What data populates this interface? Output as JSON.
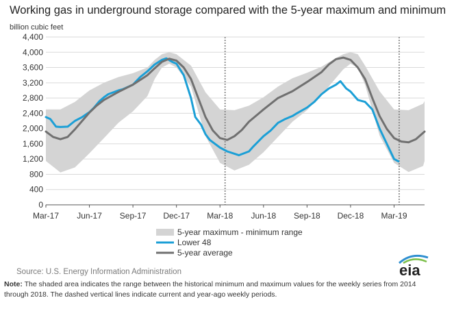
{
  "header": {
    "title": "Working gas in underground  storage compared with the 5-year maximum and minimum",
    "unit": "billion cubic feet"
  },
  "footer": {
    "source": "Source:  U.S. Energy Information Administration",
    "note_label": "Note:",
    "note_text": " The shaded area indicates the range between the historical minimum and maximum values for the weekly series from 2014 through 2018. The dashed vertical lines indicate current and year-ago weekly periods.",
    "logo_text": "eia"
  },
  "colors": {
    "range": "#d4d4d4",
    "lower48": "#1b9fd6",
    "avg": "#707070",
    "grid": "#d9d9d9",
    "logo_blue": "#2f8fd0",
    "logo_green": "#7cbf4a"
  },
  "chart_data": {
    "type": "area",
    "xlabel": "",
    "ylabel": "billion cubic feet",
    "x_unit": "month index (0 = Mar-17)",
    "xlim": [
      0,
      26.1
    ],
    "ylim": [
      0,
      4400
    ],
    "y_ticks": [
      0,
      400,
      800,
      1200,
      1600,
      2000,
      2400,
      2800,
      3200,
      3600,
      4000,
      4400
    ],
    "x_ticks": [
      {
        "label": "Mar-17",
        "x": 0
      },
      {
        "label": "Jun-17",
        "x": 3
      },
      {
        "label": "Sep-17",
        "x": 6
      },
      {
        "label": "Dec-17",
        "x": 9
      },
      {
        "label": "Mar-18",
        "x": 12
      },
      {
        "label": "Jun-18",
        "x": 15
      },
      {
        "label": "Sep-18",
        "x": 18
      },
      {
        "label": "Dec-18",
        "x": 21
      },
      {
        "label": "Mar-19",
        "x": 24
      }
    ],
    "grid": true,
    "legend": "bottom-center",
    "dashed_lines_x": [
      12.35,
      24.35
    ],
    "series": [
      {
        "name": "5-year maximum - minimum range",
        "kind": "band",
        "x": [
          0,
          1,
          2,
          3,
          4,
          5,
          6,
          7,
          7.5,
          8,
          8.5,
          9,
          10,
          11,
          12,
          13,
          14,
          15,
          16,
          17,
          18,
          19,
          20,
          20.5,
          21,
          21.5,
          22,
          23,
          24,
          25,
          26,
          26.1
        ],
        "upper": [
          2500,
          2500,
          2700,
          3000,
          3200,
          3350,
          3450,
          3600,
          3800,
          3950,
          4000,
          3950,
          3650,
          2950,
          2500,
          2480,
          2600,
          2820,
          3100,
          3320,
          3460,
          3620,
          3850,
          3950,
          4000,
          3950,
          3650,
          2980,
          2500,
          2480,
          2650,
          2720
        ],
        "lower": [
          1150,
          850,
          980,
          1350,
          1750,
          2150,
          2450,
          2850,
          3300,
          3600,
          3700,
          3600,
          3100,
          1800,
          1100,
          900,
          1050,
          1380,
          1780,
          2180,
          2480,
          2880,
          3330,
          3550,
          3700,
          3600,
          3150,
          1820,
          1100,
          860,
          1020,
          1150
        ]
      },
      {
        "name": "Lower 48",
        "kind": "line",
        "x": [
          0,
          0.3,
          0.7,
          1,
          1.5,
          2,
          2.5,
          3,
          3.3,
          3.7,
          4,
          4.3,
          5,
          5.3,
          6,
          6.5,
          7,
          7.5,
          8,
          8.3,
          8.7,
          9,
          9.5,
          10,
          10.3,
          10.7,
          11,
          11.3,
          12,
          12.5,
          13,
          13.3,
          14,
          14.3,
          15,
          15.5,
          16,
          16.5,
          17,
          17.3,
          18,
          18.5,
          19,
          19.5,
          20,
          20.3,
          20.7,
          21,
          21.5,
          22,
          22.5,
          23,
          23.5,
          24,
          24.3
        ],
        "values": [
          2300,
          2250,
          2050,
          2040,
          2050,
          2200,
          2300,
          2430,
          2540,
          2720,
          2820,
          2900,
          3000,
          3030,
          3150,
          3350,
          3500,
          3680,
          3800,
          3840,
          3750,
          3700,
          3400,
          2800,
          2300,
          2100,
          1850,
          1700,
          1500,
          1400,
          1340,
          1300,
          1400,
          1530,
          1800,
          1950,
          2150,
          2250,
          2330,
          2400,
          2550,
          2700,
          2900,
          3050,
          3150,
          3240,
          3050,
          2970,
          2750,
          2700,
          2500,
          2000,
          1600,
          1200,
          1140
        ]
      },
      {
        "name": "5-year average",
        "kind": "line",
        "x": [
          0,
          0.5,
          1,
          1.5,
          2,
          2.5,
          3,
          3.5,
          4,
          5,
          6,
          7,
          7.5,
          8,
          8.5,
          9,
          9.5,
          10,
          10.5,
          11,
          11.5,
          12,
          12.5,
          13,
          13.5,
          14,
          15,
          16,
          17,
          18,
          19,
          19.5,
          20,
          20.5,
          21,
          21.5,
          22,
          22.5,
          23,
          23.5,
          24,
          24.5,
          25,
          25.5,
          26.1
        ],
        "values": [
          1920,
          1780,
          1720,
          1780,
          1980,
          2200,
          2420,
          2600,
          2750,
          2960,
          3150,
          3400,
          3580,
          3750,
          3830,
          3780,
          3600,
          3300,
          2800,
          2300,
          1950,
          1750,
          1700,
          1800,
          1960,
          2180,
          2500,
          2800,
          2980,
          3220,
          3480,
          3680,
          3820,
          3860,
          3800,
          3600,
          3300,
          2800,
          2330,
          1990,
          1750,
          1660,
          1640,
          1720,
          1920
        ]
      }
    ]
  }
}
